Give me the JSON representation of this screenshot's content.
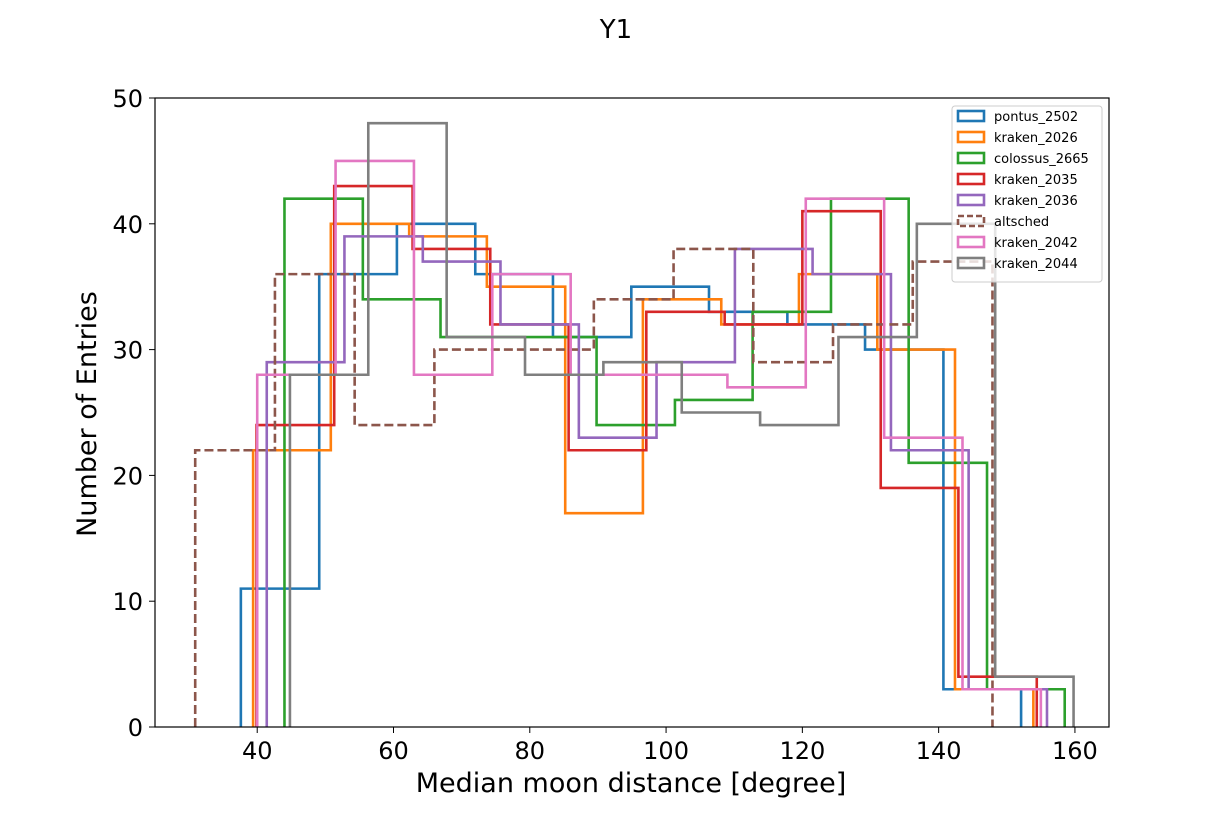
{
  "chart_data": {
    "type": "histogram",
    "title": "Y1",
    "xlabel": "Median moon distance [degree]",
    "ylabel": "Number of Entries",
    "xlim": [
      25,
      165
    ],
    "ylim": [
      0,
      50
    ],
    "xticks": [
      40,
      60,
      80,
      100,
      120,
      140,
      160
    ],
    "yticks": [
      0,
      10,
      20,
      30,
      40,
      50
    ],
    "grid": false,
    "legend_position": "top-right",
    "series": [
      {
        "name": "pontus_2502",
        "color": "#1f77b4",
        "dashed": false,
        "edges": [
          37.6,
          49.1,
          60.5,
          72.0,
          83.4,
          94.9,
          106.3,
          117.8,
          129.2,
          140.7,
          152.1
        ],
        "counts": [
          11,
          36,
          40,
          36,
          31,
          35,
          33,
          32,
          30,
          3
        ]
      },
      {
        "name": "kraken_2026",
        "color": "#ff7f0e",
        "dashed": false,
        "edges": [
          39.4,
          50.8,
          62.3,
          73.7,
          85.2,
          96.6,
          108.1,
          119.5,
          131.0,
          142.4,
          153.9
        ],
        "counts": [
          22,
          40,
          39,
          35,
          17,
          34,
          32,
          36,
          30,
          3
        ]
      },
      {
        "name": "colossus_2665",
        "color": "#2ca02c",
        "dashed": false,
        "edges": [
          44.0,
          55.5,
          66.9,
          78.4,
          89.8,
          101.3,
          112.7,
          124.2,
          135.6,
          147.1,
          158.5
        ],
        "counts": [
          42,
          34,
          31,
          31,
          24,
          26,
          33,
          42,
          21,
          3
        ]
      },
      {
        "name": "kraken_2035",
        "color": "#d62728",
        "dashed": false,
        "edges": [
          39.9,
          51.3,
          62.8,
          74.2,
          85.7,
          97.1,
          108.6,
          120.0,
          131.5,
          142.9,
          154.4
        ],
        "counts": [
          24,
          43,
          38,
          32,
          22,
          33,
          32,
          41,
          19,
          4
        ]
      },
      {
        "name": "kraken_2036",
        "color": "#9467bd",
        "dashed": false,
        "edges": [
          41.4,
          52.8,
          64.3,
          75.7,
          87.2,
          98.6,
          110.1,
          121.5,
          133.0,
          144.4,
          155.9
        ],
        "counts": [
          29,
          39,
          37,
          32,
          23,
          29,
          38,
          36,
          22,
          3
        ]
      },
      {
        "name": "altsched",
        "color": "#8c564b",
        "dashed": true,
        "edges": [
          30.9,
          42.6,
          54.3,
          66.0,
          77.7,
          89.4,
          101.1,
          112.8,
          124.5,
          136.2,
          147.9
        ],
        "counts": [
          22,
          36,
          24,
          30,
          30,
          34,
          38,
          29,
          32,
          37
        ]
      },
      {
        "name": "kraken_2042",
        "color": "#e377c2",
        "dashed": false,
        "edges": [
          40.0,
          51.5,
          63.0,
          74.5,
          86.0,
          97.5,
          109.0,
          120.5,
          132.0,
          143.5,
          155.0
        ],
        "counts": [
          28,
          45,
          28,
          36,
          28,
          28,
          27,
          42,
          23,
          3
        ]
      },
      {
        "name": "kraken_2044",
        "color": "#7f7f7f",
        "dashed": false,
        "edges": [
          44.8,
          56.3,
          67.8,
          79.3,
          90.8,
          102.3,
          113.8,
          125.3,
          136.8,
          148.3,
          159.8
        ],
        "counts": [
          28,
          48,
          31,
          28,
          29,
          25,
          24,
          31,
          40,
          4
        ]
      }
    ]
  }
}
